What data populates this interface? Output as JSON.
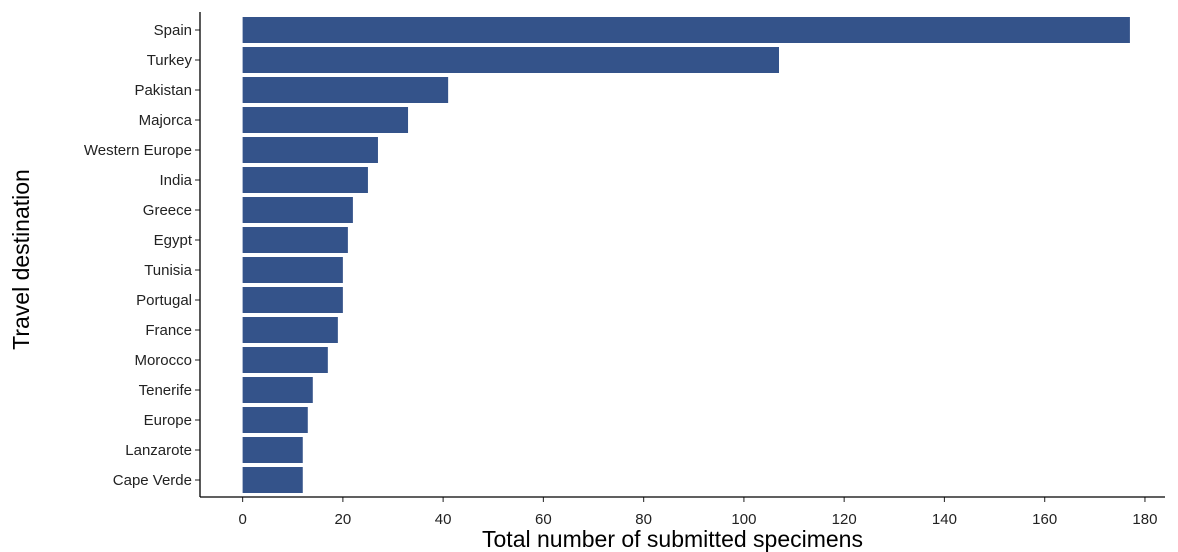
{
  "chart_data": {
    "type": "bar",
    "orientation": "horizontal",
    "categories": [
      "Spain",
      "Turkey",
      "Pakistan",
      "Majorca",
      "Western Europe",
      "India",
      "Greece",
      "Egypt",
      "Tunisia",
      "Portugal",
      "France",
      "Morocco",
      "Tenerife",
      "Europe",
      "Lanzarote",
      "Cape Verde"
    ],
    "values": [
      177,
      107,
      41,
      33,
      27,
      25,
      22,
      21,
      20,
      20,
      19,
      17,
      14,
      13,
      12,
      12
    ],
    "xlabel": "Total number of submitted specimens",
    "ylabel": "Travel destination",
    "xlim": [
      -8.5,
      184
    ],
    "xticks": [
      0,
      20,
      40,
      60,
      80,
      100,
      120,
      140,
      160,
      180
    ],
    "grid": false,
    "legend": "none",
    "bar_color": "#34538A"
  }
}
